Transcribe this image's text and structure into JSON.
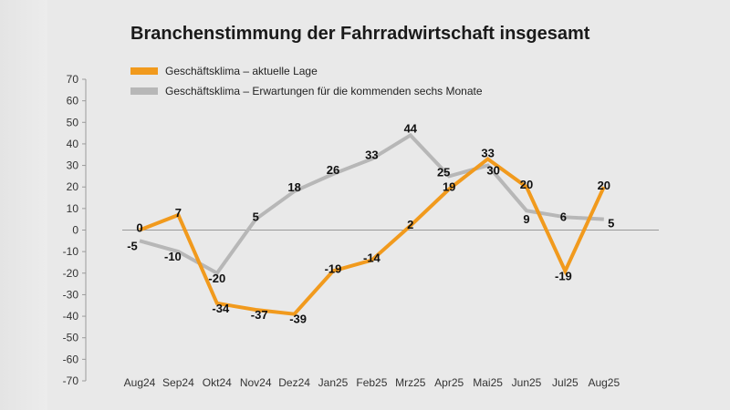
{
  "chart_data": {
    "type": "line",
    "title": "Branchenstimmung der Fahrradwirtschaft insgesamt",
    "categories": [
      "Aug24",
      "Sep24",
      "Okt24",
      "Nov24",
      "Dez24",
      "Jan25",
      "Feb25",
      "Mrz25",
      "Apr25",
      "Mai25",
      "Jun25",
      "Jul25",
      "Aug25"
    ],
    "series": [
      {
        "name": "Geschäftsklima – aktuelle Lage",
        "color": "#f19a1d",
        "values": [
          0,
          7,
          -34,
          -37,
          -39,
          -19,
          -14,
          2,
          19,
          33,
          20,
          -19,
          20
        ]
      },
      {
        "name": "Geschäftsklima – Erwartungen für die kommenden sechs Monate",
        "color": "#b7b7b7",
        "values": [
          -5,
          -10,
          -20,
          5,
          18,
          26,
          33,
          44,
          25,
          30,
          9,
          6,
          5
        ]
      }
    ],
    "ylim": [
      -70,
      70
    ],
    "yticks": [
      70,
      60,
      50,
      40,
      30,
      20,
      10,
      0,
      -10,
      -20,
      -30,
      -40,
      -50,
      -60,
      -70
    ],
    "legend_position": "top-left",
    "grid": false
  }
}
